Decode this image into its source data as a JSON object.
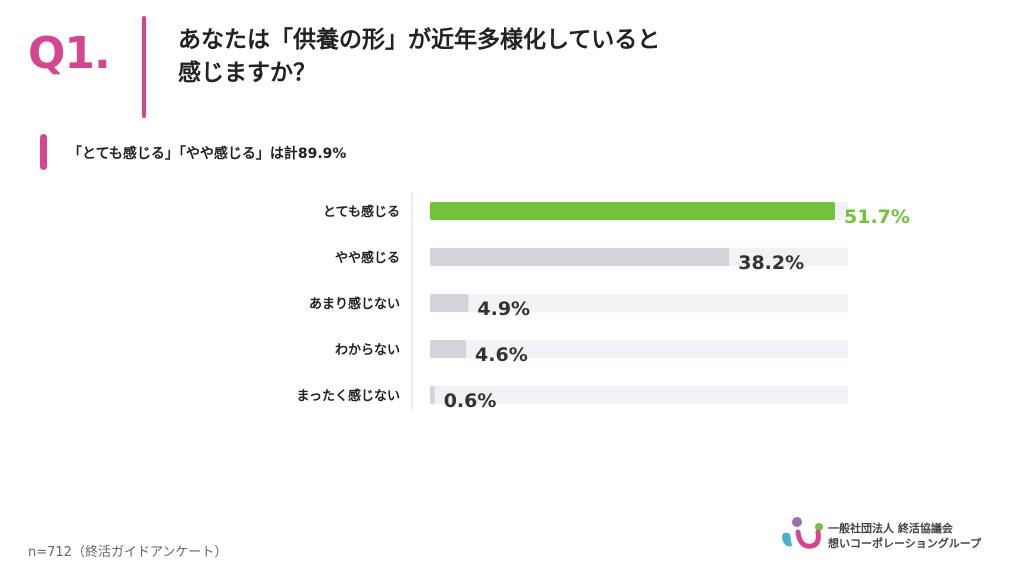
{
  "question": {
    "number": "Q1.",
    "title_line1": "あなたは「供養の形」が近年多様化していると",
    "title_line2": "感じますか？"
  },
  "summary": "「とても感じる」「やや感じる」は計89.9%",
  "chart_data": {
    "type": "bar",
    "orientation": "horizontal",
    "categories": [
      "とても感じる",
      "やや感じる",
      "あまり感じない",
      "わからない",
      "まったく感じない"
    ],
    "values": [
      51.7,
      38.2,
      4.9,
      4.6,
      0.6
    ],
    "value_labels": [
      "51.7%",
      "38.2%",
      "4.9%",
      "4.6%",
      "0.6%"
    ],
    "xlim": [
      0,
      51.7
    ],
    "highlight_index": 0,
    "colors": {
      "highlight": "#72c23e",
      "bar": "#d5d3d9",
      "track": "#f3f1f5",
      "highlight_label": "#72c23e",
      "label": "#333333"
    }
  },
  "footnote": "n=712（終活ガイドアンケート）",
  "organization": {
    "line1": "一般社団法人 終活協議会",
    "line2": "想いコーポレーショングループ"
  },
  "colors": {
    "accent": "#d4468e"
  }
}
